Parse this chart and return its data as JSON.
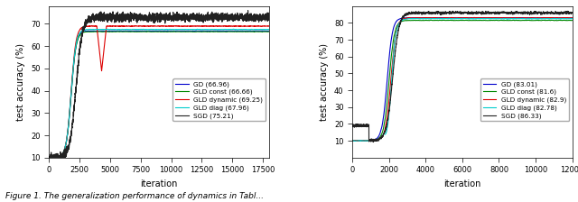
{
  "plot1": {
    "xlabel": "iteration",
    "ylabel": "test accuracy (%)",
    "xlim": [
      0,
      18000
    ],
    "ylim": [
      10,
      78
    ],
    "yticks": [
      10,
      20,
      30,
      40,
      50,
      60,
      70
    ],
    "xticks": [
      0,
      2500,
      5000,
      7500,
      10000,
      12500,
      15000,
      17500
    ],
    "finals": {
      "GD": 66.96,
      "GLD_const": 66.66,
      "GLD_dynamic": 69.25,
      "GLD_diag": 67.96,
      "SGD": 75.21
    },
    "colors": {
      "GD": "#0000cc",
      "GLD_const": "#008800",
      "GLD_dynamic": "#dd0000",
      "GLD_diag": "#00cccc",
      "SGD": "#222222"
    }
  },
  "plot2": {
    "xlabel": "iteration",
    "ylabel": "test accuracy (%)",
    "xlim": [
      0,
      12000
    ],
    "ylim": [
      0,
      90
    ],
    "yticks": [
      10,
      20,
      30,
      40,
      50,
      60,
      70,
      80
    ],
    "xticks": [
      0,
      2000,
      4000,
      6000,
      8000,
      10000,
      12000
    ],
    "finals": {
      "GD": 83.01,
      "GLD_const": 81.6,
      "GLD_dynamic": 82.9,
      "GLD_diag": 82.78,
      "SGD": 86.33
    },
    "colors": {
      "GD": "#0000cc",
      "GLD_const": "#008800",
      "GLD_dynamic": "#dd0000",
      "GLD_diag": "#00cccc",
      "SGD": "#222222"
    }
  },
  "caption": "Figure 1. The generalization performance of dynamics in Tabl..."
}
